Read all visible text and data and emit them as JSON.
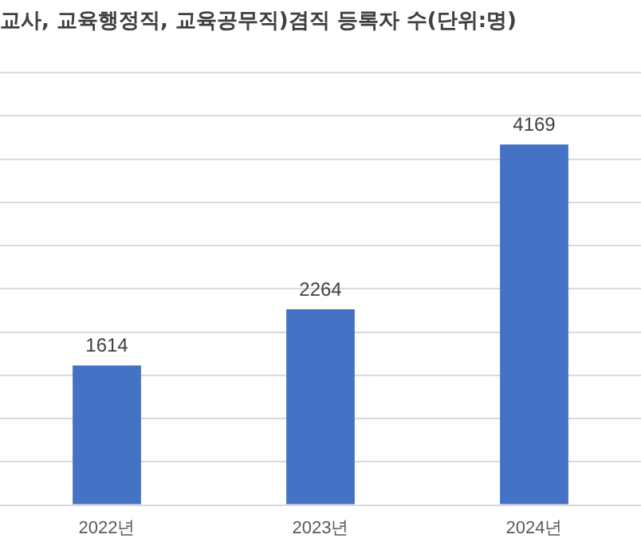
{
  "chart_data": {
    "type": "bar",
    "title": "교사, 교육행정직, 교육공무직)겸직 등록자 수(단위:명)",
    "categories": [
      "2022년",
      "2023년",
      "2024년"
    ],
    "values": [
      1614,
      2264,
      4169
    ],
    "color": "#4472c4",
    "ylim": [
      0,
      5000
    ],
    "yticks": [
      {
        "value": 0,
        "label": null
      },
      {
        "value": 500,
        "label": null
      },
      {
        "value": 1000,
        "label": null
      },
      {
        "value": 1500,
        "label": null
      },
      {
        "value": 2000,
        "label": null
      },
      {
        "value": 2500,
        "label": null
      },
      {
        "value": 3000,
        "label": null
      },
      {
        "value": 3500,
        "label": null
      },
      {
        "value": 4000,
        "label": null
      },
      {
        "value": 4500,
        "label": null
      },
      {
        "value": 5000,
        "label": null
      }
    ],
    "grid": "y",
    "tick_labels": "x",
    "data_labels": true,
    "legend": false
  }
}
